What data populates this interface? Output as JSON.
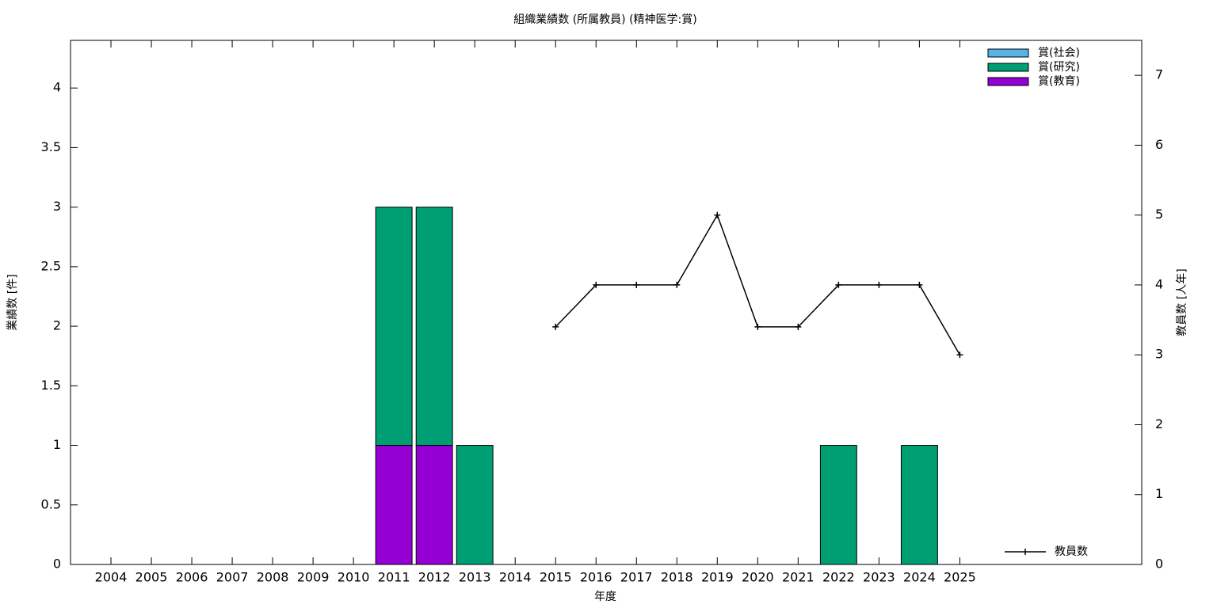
{
  "chart_data": {
    "type": "bar",
    "title": "組織業績数 (所属教員) (精神医学:賞)",
    "x_label": "年度",
    "y_label": "業績数 [件]",
    "y2_label": "教員数 [人年]",
    "categories": [
      "2004",
      "2005",
      "2006",
      "2007",
      "2008",
      "2009",
      "2010",
      "2011",
      "2012",
      "2013",
      "2014",
      "2015",
      "2016",
      "2017",
      "2018",
      "2019",
      "2020",
      "2021",
      "2022",
      "2023",
      "2024",
      "2025"
    ],
    "stacked": true,
    "series": [
      {
        "name": "賞(社会)",
        "color": "#56b4e9",
        "values": [
          0,
          0,
          0,
          0,
          0,
          0,
          0,
          0,
          0,
          0,
          0,
          0,
          0,
          0,
          0,
          0,
          0,
          0,
          0,
          0,
          0,
          0
        ]
      },
      {
        "name": "賞(研究)",
        "color": "#009e73",
        "values": [
          0,
          0,
          0,
          0,
          0,
          0,
          0,
          2,
          2,
          1,
          0,
          0,
          0,
          0,
          0,
          0,
          0,
          0,
          1,
          0,
          1,
          0
        ]
      },
      {
        "name": "賞(教育)",
        "color": "#9400d3",
        "values": [
          0,
          0,
          0,
          0,
          0,
          0,
          0,
          1,
          1,
          0,
          0,
          0,
          0,
          0,
          0,
          0,
          0,
          0,
          0,
          0,
          0,
          0
        ]
      },
      {
        "name": "教員数",
        "type": "line",
        "axis": "y2",
        "color": "#000000",
        "values": [
          null,
          null,
          null,
          null,
          null,
          null,
          null,
          null,
          null,
          null,
          null,
          3.4,
          4,
          4,
          4,
          5,
          3.4,
          3.4,
          4,
          4,
          4,
          3
        ]
      }
    ],
    "ylim": [
      0,
      4.4
    ],
    "yticks": [
      0,
      0.5,
      1,
      1.5,
      2,
      2.5,
      3,
      3.5,
      4
    ],
    "y2lim": [
      0,
      7.5
    ],
    "y2ticks": [
      0,
      1,
      2,
      3,
      4,
      5,
      6,
      7
    ]
  }
}
